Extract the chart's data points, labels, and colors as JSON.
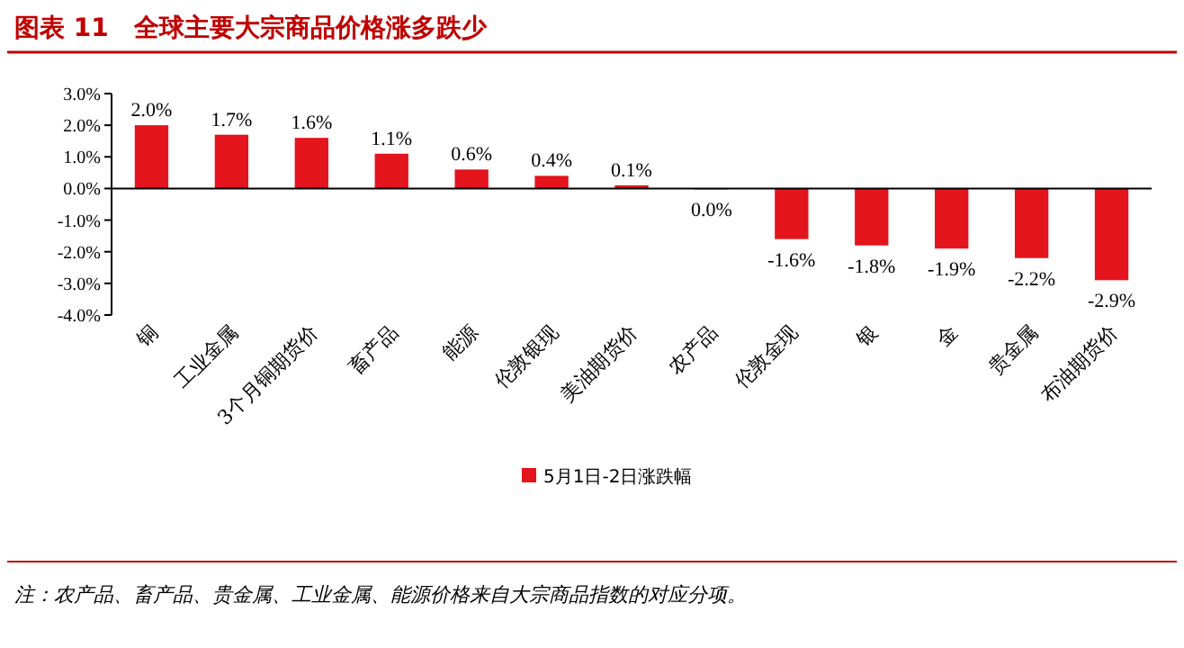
{
  "chart_data": {
    "type": "bar",
    "title": "图表 11　全球主要大宗商品价格涨多跌少",
    "categories": [
      "铜",
      "工业金属",
      "3个月铜期货价",
      "畜产品",
      "能源",
      "伦敦银现",
      "美油期货价",
      "农产品",
      "伦敦金现",
      "银",
      "金",
      "贵金属",
      "布油期货价"
    ],
    "series": [
      {
        "name": "5月1日-2日涨跌幅",
        "color": "#e3141c",
        "values": [
          2.0,
          1.7,
          1.6,
          1.1,
          0.6,
          0.4,
          0.1,
          -0.03,
          -1.6,
          -1.8,
          -1.9,
          -2.2,
          -2.9
        ],
        "value_labels": [
          "2.0%",
          "1.7%",
          "1.6%",
          "1.1%",
          "0.6%",
          "0.4%",
          "0.1%",
          "0.0%",
          "-1.6%",
          "-1.8%",
          "-1.9%",
          "-2.2%",
          "-2.9%"
        ]
      }
    ],
    "ylim": [
      -4,
      3
    ],
    "yticks": [
      {
        "value": 3,
        "label": "3.0%"
      },
      {
        "value": 2,
        "label": "2.0%"
      },
      {
        "value": 1,
        "label": "1.0%"
      },
      {
        "value": 0,
        "label": "0.0%"
      },
      {
        "value": -1,
        "label": "-1.0%"
      },
      {
        "value": -2,
        "label": "-2.0%"
      },
      {
        "value": -3,
        "label": "-3.0%"
      },
      {
        "value": -4,
        "label": "-4.0%"
      }
    ],
    "legend": "bottom",
    "annotations": [
      "注：农产品、畜产品、贵金属、工业金属、能源价格来自大宗商品指数的对应分项。"
    ]
  }
}
